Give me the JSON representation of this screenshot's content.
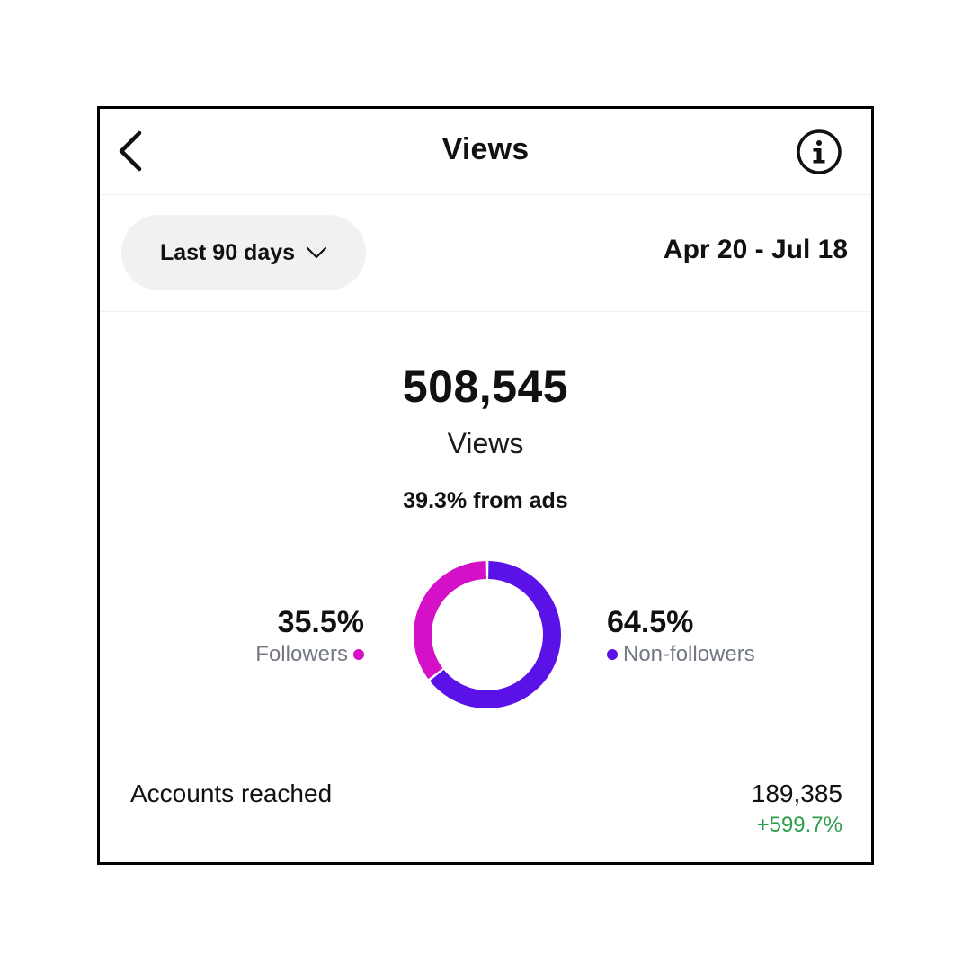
{
  "header": {
    "title": "Views",
    "back_icon": "chevron-left-icon",
    "info_icon": "info-circle-icon"
  },
  "range": {
    "selector_label": "Last 90 days",
    "selector_icon": "chevron-down-icon",
    "dates": "Apr 20 - Jul 18"
  },
  "summary": {
    "total": "508,545",
    "label": "Views",
    "ads_note": "39.3% from ads"
  },
  "breakdown": {
    "followers": {
      "pct": "35.5%",
      "label": "Followers",
      "value": 35.5,
      "color": "#d411c6"
    },
    "non_followers": {
      "pct": "64.5%",
      "label": "Non-followers",
      "value": 64.5,
      "color": "#5b12e6"
    }
  },
  "accounts": {
    "label": "Accounts reached",
    "value": "189,385",
    "change": "+599.7%",
    "change_color": "#2e9e4b"
  }
}
